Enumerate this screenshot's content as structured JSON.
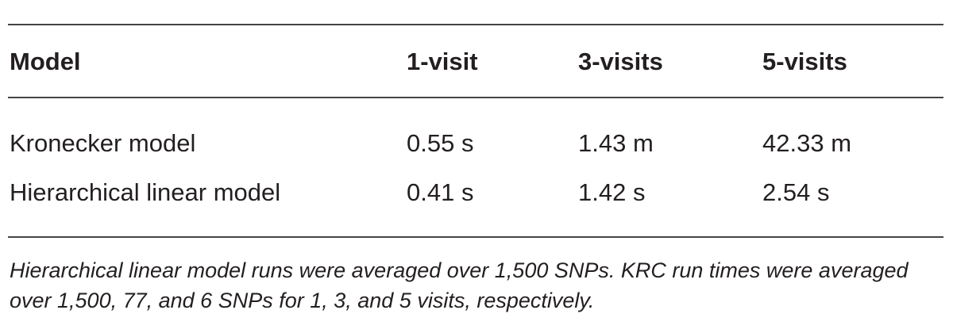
{
  "table": {
    "header": [
      "Model",
      "1-visit",
      "3-visits",
      "5-visits"
    ],
    "rows": [
      [
        "Kronecker model",
        "0.55 s",
        "1.43 m",
        "42.33 m"
      ],
      [
        "Hierarchical linear model",
        "0.41 s",
        "1.42 s",
        "2.54 s"
      ]
    ]
  },
  "footnote": "Hierarchical linear model runs were averaged over 1,500 SNPs. KRC run times were averaged over 1,500, 77, and 6 SNPs for 1, 3, and 5 visits, respectively."
}
